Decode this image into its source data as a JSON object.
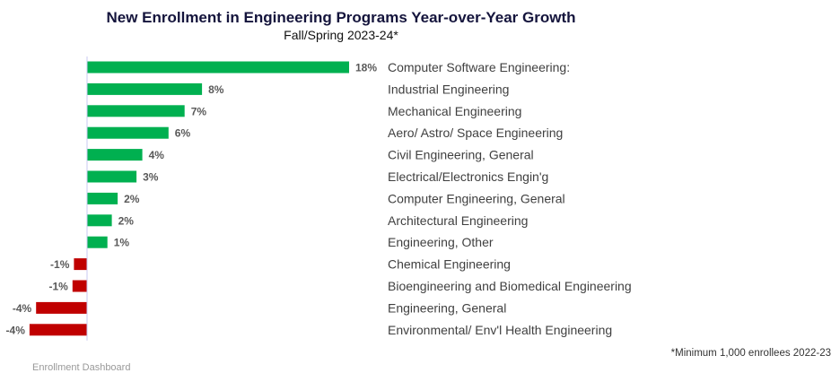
{
  "chart_data": {
    "type": "bar",
    "orientation": "horizontal",
    "title": "New Enrollment in Engineering Programs Year-over-Year Growth",
    "subtitle": "Fall/Spring 2023-24*",
    "xlabel": "",
    "ylabel": "",
    "xlim": [
      -4.5,
      18.5
    ],
    "grid": false,
    "legend": "none",
    "categories": [
      "Computer Software Engineering:",
      "Industrial Engineering",
      "Mechanical Engineering",
      "Aero/ Astro/ Space Engineering",
      "Civil Engineering, General",
      "Electrical/Electronics Engin'g",
      "Computer Engineering, General",
      "Architectural Engineering",
      "Engineering, Other",
      "Chemical Engineering",
      "Bioengineering and Biomedical Engineering",
      "Engineering, General",
      "Environmental/ Env'l Health Engineering"
    ],
    "values": [
      18.0,
      7.9,
      6.7,
      5.6,
      3.8,
      3.4,
      2.1,
      1.7,
      1.4,
      -0.9,
      -1.0,
      -3.5,
      -3.95
    ],
    "data_labels": [
      "18%",
      "8%",
      "7%",
      "6%",
      "4%",
      "3%",
      "2%",
      "2%",
      "1%",
      "-1%",
      "-1%",
      "-4%",
      "-4%"
    ],
    "colors": {
      "positive": "#00b050",
      "negative": "#c00000",
      "axis": "#c8c8f0",
      "label": "#595959",
      "category_text": "#404040"
    }
  },
  "footnote": "*Minimum 1,000 enrollees 2022-23",
  "source_note": "Enrollment Dashboard"
}
